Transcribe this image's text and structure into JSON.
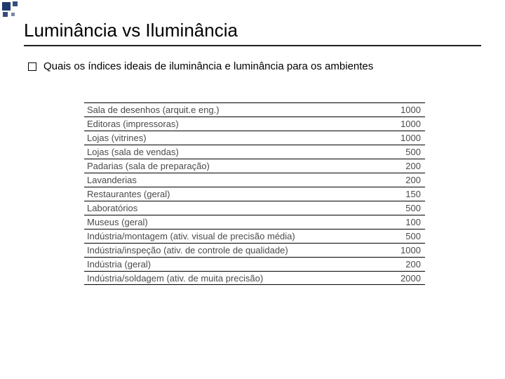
{
  "title": "Luminância vs Iluminância",
  "bullet": "Quais os índices ideais de iluminância e luminância para os ambientes",
  "accent_color": "#1f3a6e",
  "table": {
    "rows": [
      {
        "label": "Sala de desenhos (arquit.e eng.)",
        "value": "1000"
      },
      {
        "label": "Editoras (impressoras)",
        "value": "1000"
      },
      {
        "label": "Lojas (vitrines)",
        "value": "1000"
      },
      {
        "label": "Lojas (sala de vendas)",
        "value": "500"
      },
      {
        "label": "Padarias (sala de preparação)",
        "value": "200"
      },
      {
        "label": "Lavanderias",
        "value": "200"
      },
      {
        "label": "Restaurantes (geral)",
        "value": "150"
      },
      {
        "label": "Laboratórios",
        "value": "500"
      },
      {
        "label": "Museus (geral)",
        "value": "100"
      },
      {
        "label": "Indústria/montagem (ativ. visual de precisão média)",
        "value": "500"
      },
      {
        "label": "Indústria/inspeção (ativ. de controle de qualidade)",
        "value": "1000"
      },
      {
        "label": "Indústria (geral)",
        "value": "200"
      },
      {
        "label": "Indústria/soldagem (ativ. de muita precisão)",
        "value": "2000"
      }
    ],
    "border_color": "#000000",
    "text_color": "#4a4a4a",
    "font_size_pt": 10
  }
}
